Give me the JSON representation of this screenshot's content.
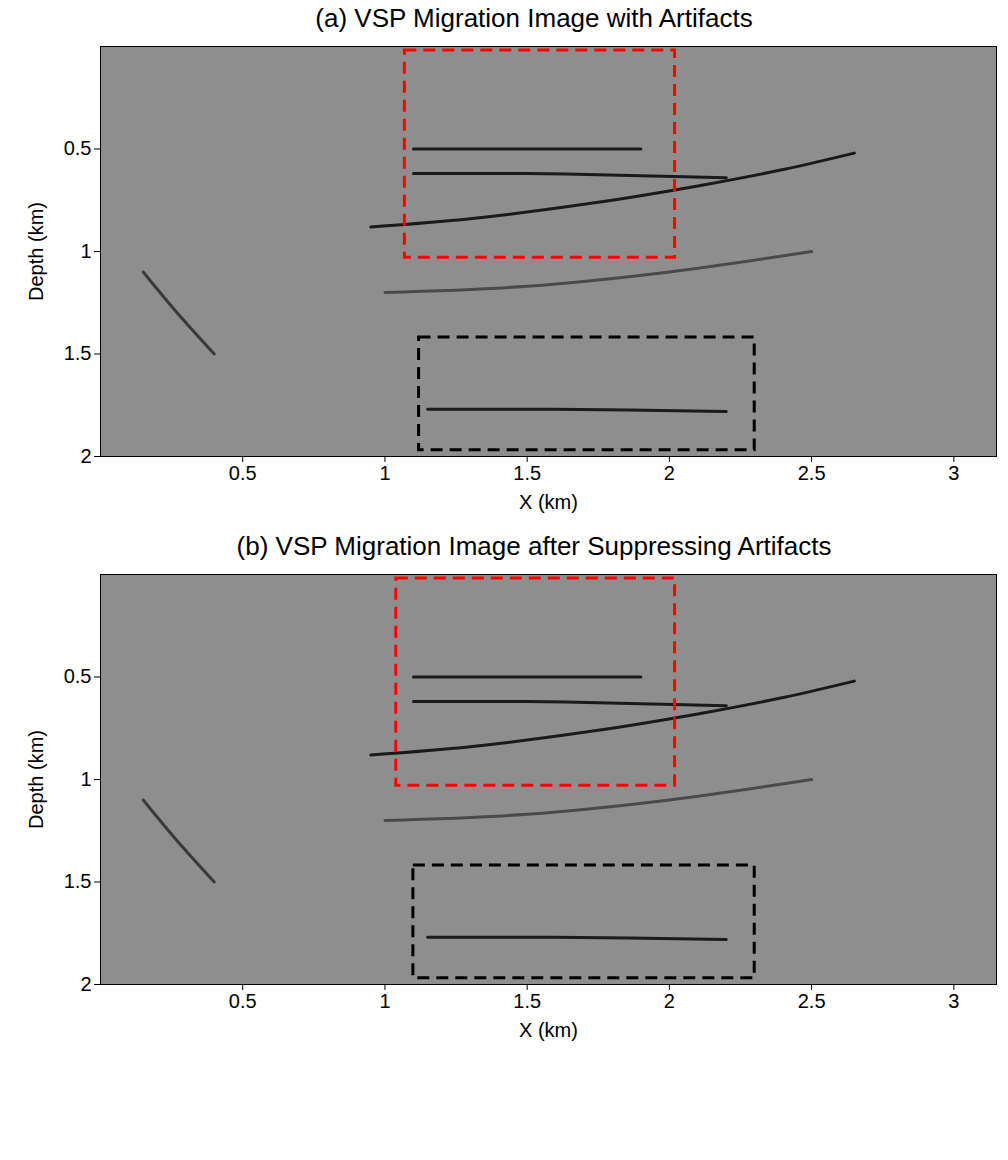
{
  "chart_data": [
    {
      "type": "line",
      "title": "(a) VSP Migration Image with Artifacts",
      "xlabel": "X (km)",
      "ylabel": "Depth (km)",
      "xlim": [
        0,
        3.15
      ],
      "xticks": [
        0.5,
        1,
        1.5,
        2,
        2.5,
        3
      ],
      "ylim": [
        2,
        0
      ],
      "yticks": [
        0.5,
        1,
        1.5,
        2
      ],
      "series": [
        {
          "color": "#1a1a1a",
          "x": [
            1.1,
            1.5,
            1.9
          ],
          "values": [
            0.5,
            0.5,
            0.5
          ]
        },
        {
          "color": "#1a1a1a",
          "x": [
            1.1,
            1.5,
            1.9,
            2.2
          ],
          "values": [
            0.62,
            0.62,
            0.63,
            0.64
          ]
        },
        {
          "color": "#1a1a1a",
          "x": [
            0.95,
            1.3,
            1.7,
            2.1,
            2.4,
            2.65
          ],
          "values": [
            0.88,
            0.84,
            0.77,
            0.68,
            0.6,
            0.52
          ]
        },
        {
          "color": "#4a4a4a",
          "x": [
            1.0,
            1.5,
            2.0,
            2.5
          ],
          "values": [
            1.2,
            1.17,
            1.1,
            1.0
          ]
        },
        {
          "color": "#1a1a1a",
          "x": [
            1.15,
            1.6,
            2.2
          ],
          "values": [
            1.77,
            1.77,
            1.78
          ]
        },
        {
          "color": "#3a3a3a",
          "x": [
            0.15,
            0.27,
            0.4
          ],
          "values": [
            1.1,
            1.3,
            1.5
          ]
        }
      ],
      "rectangles": [
        {
          "x": [
            1.07,
            2.02
          ],
          "y": [
            0.02,
            1.03
          ],
          "color": "#ff0000",
          "line_style": "dashed"
        },
        {
          "x": [
            1.12,
            2.3
          ],
          "y": [
            1.42,
            1.97
          ],
          "color": "#000000",
          "line_style": "dashed"
        }
      ]
    },
    {
      "type": "line",
      "title": "(b) VSP Migration Image after Suppressing Artifacts",
      "xlabel": "X (km)",
      "ylabel": "Depth (km)",
      "xlim": [
        0,
        3.15
      ],
      "xticks": [
        0.5,
        1,
        1.5,
        2,
        2.5,
        3
      ],
      "ylim": [
        2,
        0
      ],
      "yticks": [
        0.5,
        1,
        1.5,
        2
      ],
      "series": [
        {
          "color": "#1a1a1a",
          "x": [
            1.1,
            1.5,
            1.9
          ],
          "values": [
            0.5,
            0.5,
            0.5
          ]
        },
        {
          "color": "#1a1a1a",
          "x": [
            1.1,
            1.5,
            1.9,
            2.2
          ],
          "values": [
            0.62,
            0.62,
            0.63,
            0.64
          ]
        },
        {
          "color": "#1a1a1a",
          "x": [
            0.95,
            1.3,
            1.7,
            2.1,
            2.4,
            2.65
          ],
          "values": [
            0.88,
            0.84,
            0.77,
            0.68,
            0.6,
            0.52
          ]
        },
        {
          "color": "#4a4a4a",
          "x": [
            1.0,
            1.5,
            2.0,
            2.5
          ],
          "values": [
            1.2,
            1.17,
            1.1,
            1.0
          ]
        },
        {
          "color": "#1a1a1a",
          "x": [
            1.15,
            1.6,
            2.2
          ],
          "values": [
            1.77,
            1.77,
            1.78
          ]
        },
        {
          "color": "#3a3a3a",
          "x": [
            0.15,
            0.27,
            0.4
          ],
          "values": [
            1.1,
            1.3,
            1.5
          ]
        }
      ],
      "rectangles": [
        {
          "x": [
            1.04,
            2.02
          ],
          "y": [
            0.02,
            1.03
          ],
          "color": "#ff0000",
          "line_style": "dashed"
        },
        {
          "x": [
            1.1,
            2.3
          ],
          "y": [
            1.42,
            1.97
          ],
          "color": "#000000",
          "line_style": "dashed"
        }
      ]
    }
  ]
}
